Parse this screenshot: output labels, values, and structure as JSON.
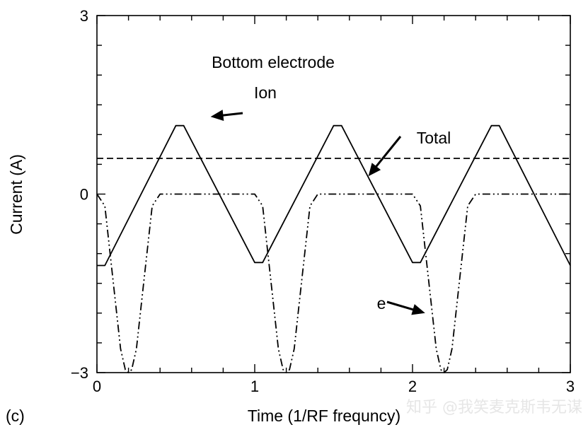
{
  "chart_data": {
    "type": "line",
    "panel_label": "(c)",
    "title": "Bottom electrode",
    "xlabel": "Time (1/RF frequncy)",
    "ylabel": "Current (A)",
    "xlim": [
      0,
      3
    ],
    "ylim": [
      -3,
      3
    ],
    "x_ticks": [
      "0",
      "1",
      "2",
      "3"
    ],
    "y_ticks": [
      "−3",
      "0",
      "3"
    ],
    "grid": false,
    "series": [
      {
        "name": "Ion",
        "style": "dashed",
        "x": [
          0,
          3
        ],
        "y": [
          0.6,
          0.6
        ]
      },
      {
        "name": "Total",
        "style": "solid",
        "x": [
          0,
          0.05,
          0.5,
          0.55,
          1.0,
          1.05,
          1.5,
          1.55,
          2.0,
          2.05,
          2.5,
          2.55,
          3.0
        ],
        "y": [
          -1.2,
          -1.2,
          1.15,
          1.15,
          -1.15,
          -1.15,
          1.15,
          1.15,
          -1.15,
          -1.15,
          1.15,
          1.15,
          -1.2
        ]
      },
      {
        "name": "e",
        "style": "dash-dot-dot",
        "x": [
          0,
          0.05,
          0.1,
          0.15,
          0.18,
          0.2,
          0.22,
          0.25,
          0.3,
          0.35,
          0.4,
          0.5,
          1.0,
          1.05,
          1.1,
          1.15,
          1.18,
          1.2,
          1.22,
          1.25,
          1.3,
          1.35,
          1.4,
          1.5,
          2.0,
          2.05,
          2.1,
          2.15,
          2.18,
          2.2,
          2.22,
          2.25,
          2.3,
          2.35,
          2.4,
          2.5,
          3.0
        ],
        "y": [
          0,
          -0.2,
          -1.4,
          -2.6,
          -2.95,
          -3.0,
          -2.95,
          -2.6,
          -1.4,
          -0.2,
          0,
          0,
          0,
          -0.2,
          -1.4,
          -2.6,
          -2.95,
          -3.0,
          -2.95,
          -2.6,
          -1.4,
          -0.2,
          0,
          0,
          0,
          -0.2,
          -1.4,
          -2.6,
          -2.95,
          -3.0,
          -2.95,
          -2.6,
          -1.4,
          -0.2,
          0,
          0,
          0
        ]
      }
    ],
    "annotations": [
      {
        "text": "Ion",
        "arrow_to": [
          0.72,
          1.3
        ]
      },
      {
        "text": "Total",
        "arrow_to": [
          1.72,
          0.3
        ]
      },
      {
        "text": "e",
        "arrow_to": [
          2.08,
          -2.0
        ]
      }
    ]
  },
  "watermark": "知乎 @我笑麦克斯韦无谋"
}
